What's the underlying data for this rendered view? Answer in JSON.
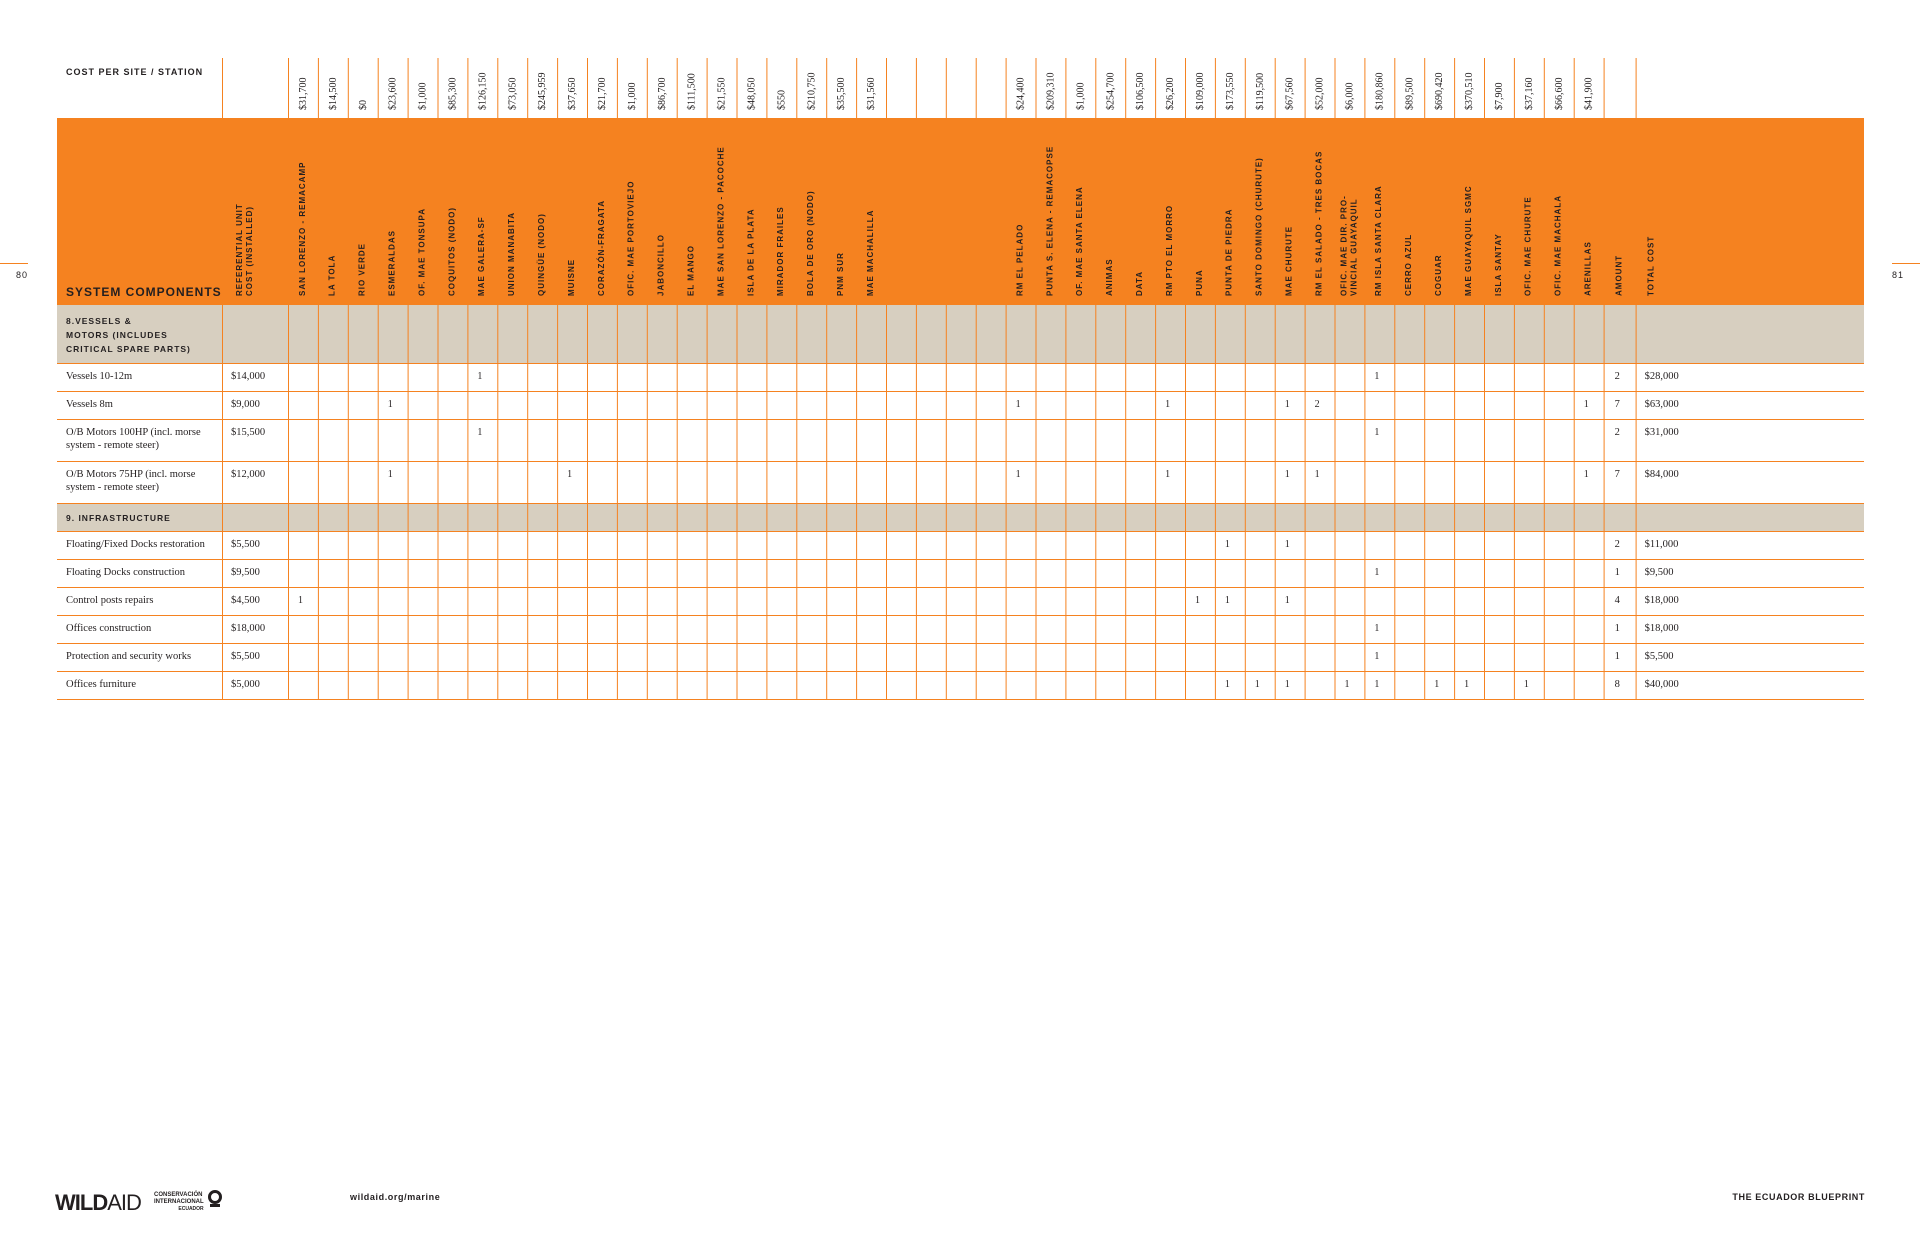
{
  "page": {
    "left_number": "80",
    "right_number": "81"
  },
  "header": {
    "cost_label": "COST PER SITE / STATION",
    "system_components_label": "SYSTEM COMPONENTS",
    "ref_cost_label": [
      "REFERENTIAL UNIT",
      "COST (INSTALLED)"
    ],
    "amount_label": "AMOUNT",
    "total_label": "TOTAL COST"
  },
  "sites": [
    {
      "name": [
        "SAN LORENZO - REMACAMP"
      ],
      "cost": "$31,700"
    },
    {
      "name": [
        "LA TOLA"
      ],
      "cost": "$14,500"
    },
    {
      "name": [
        "RIO VERDE"
      ],
      "cost": "$0"
    },
    {
      "name": [
        "ESMERALDAS"
      ],
      "cost": "$23,600"
    },
    {
      "name": [
        "OF. MAE TONSUPA"
      ],
      "cost": "$1,000"
    },
    {
      "name": [
        "COQUITOS (NODO)"
      ],
      "cost": "$85,300"
    },
    {
      "name": [
        "MAE GALERA-SF"
      ],
      "cost": "$126,150"
    },
    {
      "name": [
        "UNION MANABITA"
      ],
      "cost": "$73,050"
    },
    {
      "name": [
        "QUINGÜE (NODO)"
      ],
      "cost": "$245,959"
    },
    {
      "name": [
        "MUISNE"
      ],
      "cost": "$37,650"
    },
    {
      "name": [
        "CORAZÓN-FRAGATA"
      ],
      "cost": "$21,700"
    },
    {
      "name": [
        "OFIC. MAE PORTOVIEJO"
      ],
      "cost": "$1,000"
    },
    {
      "name": [
        "JABONCILLO"
      ],
      "cost": "$86,700"
    },
    {
      "name": [
        "EL MANGO"
      ],
      "cost": "$111,500"
    },
    {
      "name": [
        "MAE SAN LORENZO - PACOCHE"
      ],
      "cost": "$21,550"
    },
    {
      "name": [
        "ISLA DE LA PLATA"
      ],
      "cost": "$48,050"
    },
    {
      "name": [
        "MIRADOR FRAILES"
      ],
      "cost": "$550"
    },
    {
      "name": [
        "BOLA DE ORO (NODO)"
      ],
      "cost": "$210,750"
    },
    {
      "name": [
        "PNM SUR"
      ],
      "cost": "$35,500"
    },
    {
      "name": [
        "MAE MACHALILLA"
      ],
      "cost": "$31,560"
    },
    {
      "name": [],
      "cost": ""
    },
    {
      "name": [],
      "cost": ""
    },
    {
      "name": [],
      "cost": ""
    },
    {
      "name": [],
      "cost": ""
    },
    {
      "name": [
        "RM EL PELADO"
      ],
      "cost": "$24,400"
    },
    {
      "name": [
        "PUNTA S. ELENA - REMACOPSE"
      ],
      "cost": "$209,310"
    },
    {
      "name": [
        "OF. MAE SANTA ELENA"
      ],
      "cost": "$1,000"
    },
    {
      "name": [
        "ANIMAS"
      ],
      "cost": "$254,700"
    },
    {
      "name": [
        "DATA"
      ],
      "cost": "$106,500"
    },
    {
      "name": [
        "RM PTO EL MORRO"
      ],
      "cost": "$26,200"
    },
    {
      "name": [
        "PUNA"
      ],
      "cost": "$109,000"
    },
    {
      "name": [
        "PUNTA DE PIEDRA"
      ],
      "cost": "$173,550"
    },
    {
      "name": [
        "SANTO DOMINGO (CHURUTE)"
      ],
      "cost": "$119,500"
    },
    {
      "name": [
        "MAE CHURUTE"
      ],
      "cost": "$67,560"
    },
    {
      "name": [
        "RM EL SALADO - TRES BOCAS"
      ],
      "cost": "$52,000"
    },
    {
      "name": [
        "OFIC. MAE DIR. PRO-",
        "VINCIAL GUAYAQUIL"
      ],
      "cost": "$6,000"
    },
    {
      "name": [
        "RM ISLA SANTA CLARA"
      ],
      "cost": "$180,860"
    },
    {
      "name": [
        "CERRO AZUL"
      ],
      "cost": "$89,500"
    },
    {
      "name": [
        "COGUAR"
      ],
      "cost": "$690,420"
    },
    {
      "name": [
        "MAE GUAYAQUIL SGMC"
      ],
      "cost": "$370,510"
    },
    {
      "name": [
        "ISLA SANTAY"
      ],
      "cost": "$7,900"
    },
    {
      "name": [
        "OFIC. MAE CHURUTE"
      ],
      "cost": "$37,160"
    },
    {
      "name": [
        "OFIC. MAE MACHALA"
      ],
      "cost": "$66,600"
    },
    {
      "name": [
        "ARENILLAS"
      ],
      "cost": "$41,900"
    }
  ],
  "sections": [
    {
      "title": [
        "8.VESSELS &",
        "MOTORS (INCLUDES",
        "CRITICAL SPARE PARTS)"
      ],
      "rows": [
        {
          "component": [
            "Vessels 10-12m"
          ],
          "unit_cost": "$14,000",
          "cells": {
            "6": "1",
            "36": "1"
          },
          "amount": "2",
          "total": "$28,000"
        },
        {
          "component": [
            "Vessels 8m"
          ],
          "unit_cost": "$9,000",
          "cells": {
            "3": "1",
            "24": "1",
            "29": "1",
            "33": "1",
            "34": "2",
            "43": "1"
          },
          "amount": "7",
          "total": "$63,000"
        },
        {
          "component": [
            "O/B Motors 100HP (incl. morse",
            "system - remote steer)"
          ],
          "unit_cost": "$15,500",
          "cells": {
            "6": "1",
            "36": "1"
          },
          "amount": "2",
          "total": "$31,000"
        },
        {
          "component": [
            "O/B Motors 75HP (incl. morse",
            "system - remote steer)"
          ],
          "unit_cost": "$12,000",
          "cells": {
            "3": "1",
            "9": "1",
            "24": "1",
            "29": "1",
            "33": "1",
            "34": "1",
            "43": "1"
          },
          "amount": "7",
          "total": "$84,000"
        }
      ]
    },
    {
      "title": [
        "9. INFRASTRUCTURE"
      ],
      "rows": [
        {
          "component": [
            "Floating/Fixed Docks restoration"
          ],
          "unit_cost": "$5,500",
          "cells": {
            "31": "1",
            "33": "1"
          },
          "amount": "2",
          "total": "$11,000"
        },
        {
          "component": [
            "Floating Docks construction"
          ],
          "unit_cost": "$9,500",
          "cells": {
            "36": "1"
          },
          "amount": "1",
          "total": "$9,500"
        },
        {
          "component": [
            "Control posts repairs"
          ],
          "unit_cost": "$4,500",
          "cells": {
            "0": "1",
            "30": "1",
            "31": "1",
            "33": "1"
          },
          "amount": "4",
          "total": "$18,000"
        },
        {
          "component": [
            "Offices construction"
          ],
          "unit_cost": "$18,000",
          "cells": {
            "36": "1"
          },
          "amount": "1",
          "total": "$18,000"
        },
        {
          "component": [
            "Protection and security works"
          ],
          "unit_cost": "$5,500",
          "cells": {
            "36": "1"
          },
          "amount": "1",
          "total": "$5,500"
        },
        {
          "component": [
            "Offices furniture"
          ],
          "unit_cost": "$5,000",
          "cells": {
            "31": "1",
            "32": "1",
            "33": "1",
            "35": "1",
            "36": "1",
            "38": "1",
            "39": "1",
            "41": "1"
          },
          "amount": "8",
          "total": "$40,000"
        }
      ]
    }
  ],
  "footer": {
    "wildaid_bold": "WILD",
    "wildaid_thin": "AID",
    "ci_lines": [
      "CONSERVACIÓN",
      "INTERNACIONAL"
    ],
    "ci_sub": "Ecuador",
    "url": "wildaid.org/marine",
    "title": "THE ECUADOR BLUEPRINT"
  },
  "colors": {
    "orange": "#f58220",
    "beige": "#d7cfc0",
    "text": "#231f20"
  }
}
